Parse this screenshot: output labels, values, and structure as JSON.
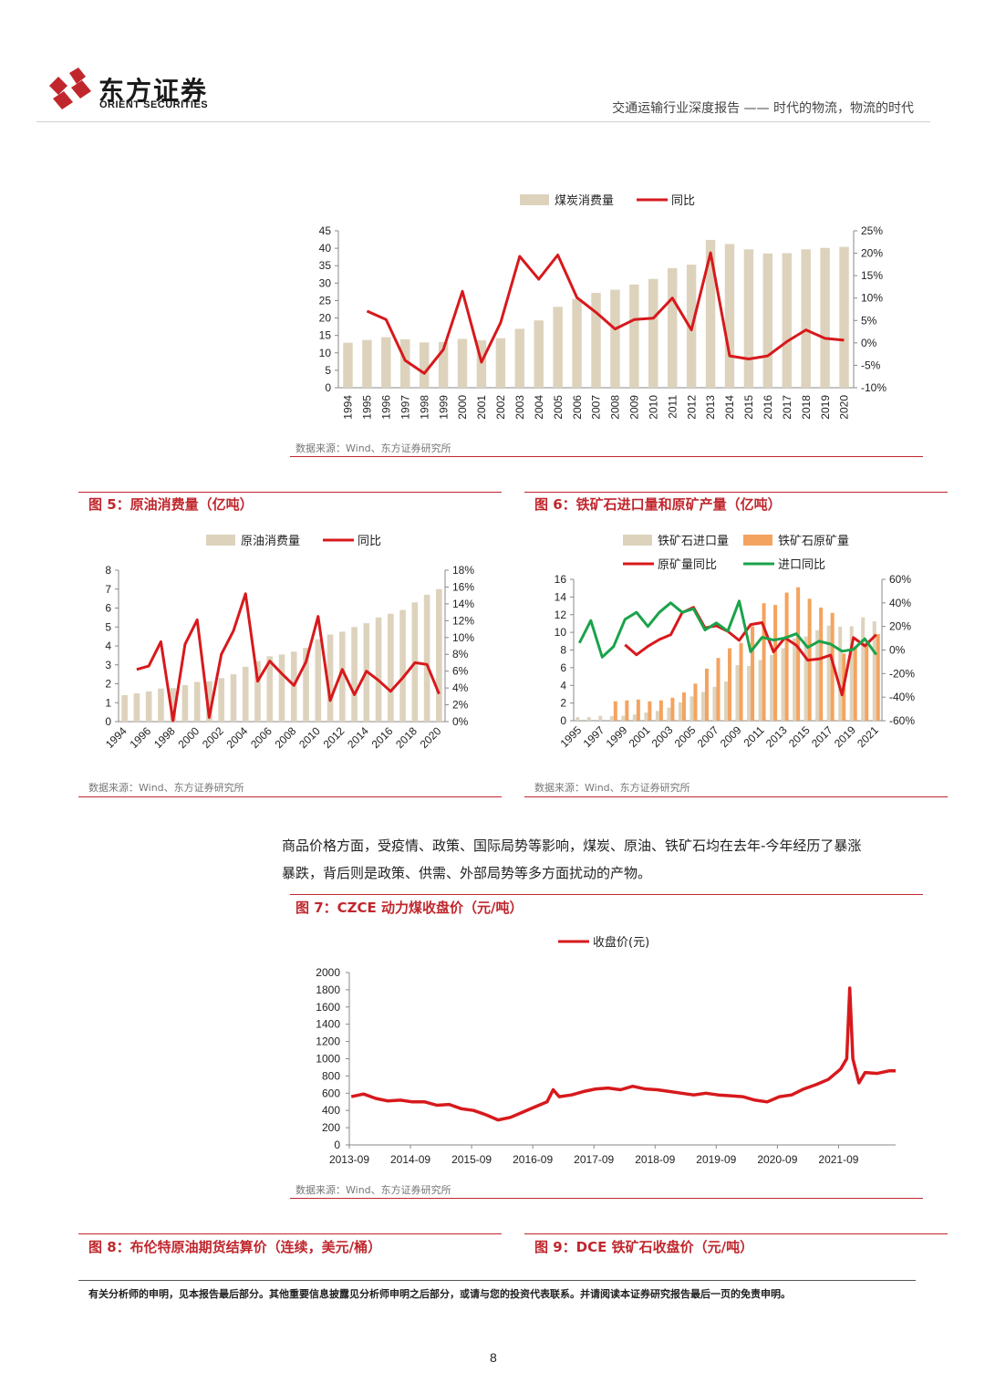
{
  "header": {
    "logo_cn": "东方证券",
    "logo_en": "ORIENT SECURITIES",
    "report_title": "交通运输行业深度报告 —— 时代的物流，物流的时代"
  },
  "chart1": {
    "source": "数据来源：Wind、东方证券研究所",
    "chart_data": {
      "type": "bar",
      "categories": [
        "1994",
        "1995",
        "1996",
        "1997",
        "1998",
        "1999",
        "2000",
        "2001",
        "2002",
        "2003",
        "2004",
        "2005",
        "2006",
        "2007",
        "2008",
        "2009",
        "2010",
        "2011",
        "2012",
        "2013",
        "2014",
        "2015",
        "2016",
        "2017",
        "2018",
        "2019",
        "2020"
      ],
      "series": [
        {
          "name": "煤炭消费量",
          "type": "bar",
          "axis": "left",
          "values": [
            12.9,
            13.7,
            14.5,
            13.9,
            13.0,
            13.1,
            14.0,
            13.6,
            14.2,
            16.9,
            19.3,
            23.2,
            25.5,
            27.2,
            28.1,
            29.6,
            31.2,
            34.3,
            35.3,
            42.4,
            41.2,
            39.7,
            38.5,
            38.6,
            39.7,
            40.1,
            40.4
          ]
        },
        {
          "name": "同比",
          "type": "line",
          "axis": "right",
          "values": [
            null,
            7.1,
            5.2,
            -3.9,
            -6.8,
            -1.5,
            11.5,
            -4.3,
            4.5,
            19.3,
            14.2,
            19.6,
            10.1,
            6.8,
            3.1,
            5.2,
            5.5,
            10.0,
            2.9,
            20.1,
            -2.9,
            -3.6,
            -2.9,
            0.3,
            2.9,
            1.0,
            0.6
          ]
        }
      ],
      "ylim_left": [
        0,
        45
      ],
      "ylim_right": [
        -10,
        25
      ],
      "yticks_left": [
        "0",
        "5",
        "10",
        "15",
        "20",
        "25",
        "30",
        "35",
        "40",
        "45"
      ],
      "yticks_right": [
        "-10%",
        "-5%",
        "0%",
        "5%",
        "10%",
        "15%",
        "20%",
        "25%"
      ],
      "colors": {
        "bar": "#ddd3bd",
        "line": "#d7191c"
      },
      "legend_position": "top"
    }
  },
  "chart5": {
    "title": "图 5：原油消费量（亿吨）",
    "source": "数据来源：Wind、东方证券研究所",
    "chart_data": {
      "type": "bar",
      "categories": [
        "1994",
        "1995",
        "1996",
        "1997",
        "1998",
        "1999",
        "2000",
        "2001",
        "2002",
        "2003",
        "2004",
        "2005",
        "2006",
        "2007",
        "2008",
        "2009",
        "2010",
        "2011",
        "2012",
        "2013",
        "2014",
        "2015",
        "2016",
        "2017",
        "2018",
        "2019",
        "2020"
      ],
      "xtick_labels": [
        "1994",
        "1996",
        "1998",
        "2000",
        "2002",
        "2004",
        "2006",
        "2008",
        "2010",
        "2012",
        "2014",
        "2016",
        "2018",
        "2020"
      ],
      "series": [
        {
          "name": "原油消费量",
          "type": "bar",
          "axis": "left",
          "values": [
            1.4,
            1.5,
            1.6,
            1.75,
            1.77,
            1.93,
            2.1,
            2.13,
            2.3,
            2.5,
            2.9,
            3.2,
            3.45,
            3.55,
            3.7,
            3.9,
            4.35,
            4.6,
            4.75,
            5.0,
            5.2,
            5.5,
            5.7,
            5.9,
            6.3,
            6.7,
            7.0
          ]
        },
        {
          "name": "同比",
          "type": "line",
          "axis": "right",
          "values": [
            null,
            6.2,
            6.6,
            9.5,
            0.1,
            9.2,
            12.1,
            0.5,
            8.0,
            10.8,
            15.2,
            4.8,
            7.2,
            5.7,
            4.3,
            7.1,
            12.5,
            2.5,
            6.2,
            3.2,
            6.0,
            4.9,
            3.6,
            5.2,
            7.0,
            6.8,
            3.3
          ]
        }
      ],
      "ylim_left": [
        0,
        8
      ],
      "ylim_right": [
        0,
        18
      ],
      "yticks_left": [
        "0",
        "1",
        "2",
        "3",
        "4",
        "5",
        "6",
        "7",
        "8"
      ],
      "yticks_right": [
        "0%",
        "2%",
        "4%",
        "6%",
        "8%",
        "10%",
        "12%",
        "14%",
        "16%",
        "18%"
      ],
      "colors": {
        "bar": "#ddd3bd",
        "line": "#d7191c"
      },
      "legend_position": "top"
    }
  },
  "chart6": {
    "title": "图 6：铁矿石进口量和原矿产量（亿吨）",
    "source": "数据来源：Wind、东方证券研究所",
    "chart_data": {
      "type": "bar",
      "categories": [
        "1995",
        "1996",
        "1997",
        "1998",
        "1999",
        "2000",
        "2001",
        "2002",
        "2003",
        "2004",
        "2005",
        "2006",
        "2007",
        "2008",
        "2009",
        "2010",
        "2011",
        "2012",
        "2013",
        "2014",
        "2015",
        "2016",
        "2017",
        "2018",
        "2019",
        "2020",
        "2021"
      ],
      "xtick_labels": [
        "1995",
        "1997",
        "1999",
        "2001",
        "2003",
        "2005",
        "2007",
        "2009",
        "2011",
        "2013",
        "2015",
        "2017",
        "2019",
        "2021"
      ],
      "series": [
        {
          "name": "铁矿石进口量",
          "type": "bar",
          "axis": "left",
          "values": [
            0.4,
            0.4,
            0.55,
            0.5,
            0.55,
            0.7,
            0.92,
            1.11,
            1.48,
            2.08,
            2.75,
            3.26,
            3.83,
            4.44,
            6.28,
            6.19,
            6.86,
            7.44,
            8.2,
            9.33,
            9.53,
            10.24,
            10.75,
            10.64,
            10.69,
            11.7,
            11.24
          ]
        },
        {
          "name": "铁矿石原矿量",
          "type": "bar",
          "axis": "left",
          "values": [
            null,
            null,
            null,
            2.2,
            2.3,
            2.4,
            2.2,
            2.3,
            2.6,
            3.2,
            4.2,
            5.9,
            7.1,
            8.2,
            8.8,
            10.7,
            13.3,
            13.1,
            14.5,
            15.1,
            13.8,
            12.8,
            12.2,
            7.6,
            8.4,
            8.7,
            9.8
          ]
        },
        {
          "name": "原矿量同比",
          "type": "line",
          "axis": "right",
          "values": [
            null,
            null,
            null,
            null,
            4.5,
            -4,
            3.2,
            8.9,
            12.9,
            31.7,
            36.2,
            18.8,
            20.6,
            15.9,
            8.1,
            21.6,
            23.2,
            -1.6,
            10.4,
            4.1,
            -8.6,
            -7.6,
            -4.3,
            -38.1,
            10.5,
            3.5,
            13.0
          ]
        },
        {
          "name": "进口同比",
          "type": "line",
          "axis": "right",
          "values": [
            6,
            25,
            -6,
            3,
            26,
            32,
            20,
            32,
            40,
            32,
            35,
            17,
            23,
            16,
            41.6,
            -1.5,
            10.8,
            8.4,
            10.2,
            13.8,
            2.2,
            7.5,
            5,
            -1,
            0.5,
            9.5,
            -3.9
          ]
        }
      ],
      "ylim_left": [
        0,
        16
      ],
      "ylim_right": [
        -60,
        60
      ],
      "yticks_left": [
        "0",
        "2",
        "4",
        "6",
        "8",
        "10",
        "12",
        "14",
        "16"
      ],
      "yticks_right": [
        "-60%",
        "-40%",
        "-20%",
        "0%",
        "20%",
        "40%",
        "60%"
      ],
      "colors": {
        "import_bar": "#ddd3bd",
        "ore_bar": "#f4a35f",
        "ore_yoy": "#d7191c",
        "import_yoy": "#1aa34a"
      },
      "legend_position": "top"
    }
  },
  "paragraph": {
    "line1": "商品价格方面，受疫情、政策、国际局势等影响，煤炭、原油、铁矿石均在去年-今年经历了暴涨",
    "line2": "暴跌，背后则是政策、供需、外部局势等多方面扰动的产物。"
  },
  "chart7": {
    "title": "图 7：CZCE 动力煤收盘价（元/吨）",
    "source": "数据来源：Wind、东方证券研究所",
    "chart_data": {
      "type": "line",
      "xtick_labels": [
        "2013-09",
        "2014-09",
        "2015-09",
        "2016-09",
        "2017-09",
        "2018-09",
        "2019-09",
        "2020-09",
        "2021-09"
      ],
      "series": [
        {
          "name": "收盘价(元)",
          "x": [
            2013.7,
            2013.9,
            2014.1,
            2014.3,
            2014.5,
            2014.7,
            2014.9,
            2015.1,
            2015.3,
            2015.5,
            2015.7,
            2015.9,
            2016.1,
            2016.3,
            2016.5,
            2016.7,
            2016.9,
            2017.0,
            2017.1,
            2017.3,
            2017.5,
            2017.7,
            2017.9,
            2018.1,
            2018.3,
            2018.5,
            2018.7,
            2018.9,
            2019.1,
            2019.3,
            2019.5,
            2019.7,
            2019.9,
            2020.1,
            2020.3,
            2020.5,
            2020.7,
            2020.9,
            2021.1,
            2021.3,
            2021.5,
            2021.7,
            2021.8,
            2021.85,
            2021.9,
            2022.0,
            2022.1,
            2022.3,
            2022.5,
            2022.6
          ],
          "values": [
            560,
            590,
            540,
            510,
            520,
            500,
            500,
            460,
            470,
            420,
            400,
            350,
            290,
            320,
            380,
            440,
            500,
            640,
            560,
            580,
            620,
            650,
            660,
            640,
            680,
            650,
            640,
            620,
            600,
            580,
            600,
            580,
            570,
            560,
            520,
            500,
            560,
            580,
            650,
            700,
            760,
            880,
            1000,
            1820,
            1000,
            720,
            840,
            830,
            860,
            860
          ]
        }
      ],
      "ylim": [
        0,
        2000
      ],
      "yticks": [
        "0",
        "200",
        "400",
        "600",
        "800",
        "1000",
        "1200",
        "1400",
        "1600",
        "1800",
        "2000"
      ],
      "colors": {
        "line": "#d7191c"
      },
      "legend_position": "top"
    }
  },
  "chart8": {
    "title": "图 8：布伦特原油期货结算价（连续，美元/桶）"
  },
  "chart9": {
    "title": "图 9：DCE 铁矿石收盘价（元/吨）"
  },
  "footer": {
    "disclaimer": "有关分析师的申明，见本报告最后部分。其他重要信息披露见分析师申明之后部分，或请与您的投资代表联系。并请阅读本证券研究报告最后一页的免责申明。",
    "page_number": "8"
  }
}
